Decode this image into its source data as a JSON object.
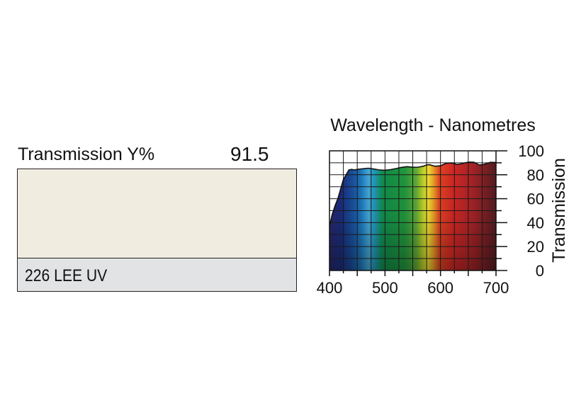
{
  "swatch": {
    "transmission_label": "Transmission Y%",
    "transmission_value": "91.5",
    "color": "#f1ece0",
    "name": "226 LEE UV"
  },
  "chart_data": {
    "type": "area",
    "title": "Wavelength - Nanometres",
    "xlabel": "",
    "ylabel": "Transmission",
    "xlim": [
      400,
      700
    ],
    "ylim": [
      0,
      100
    ],
    "xticks": [
      "400",
      "500",
      "600",
      "700"
    ],
    "yticks": [
      "0",
      "20",
      "40",
      "60",
      "80",
      "100"
    ],
    "grid": true,
    "x": [
      400,
      405,
      410,
      415,
      420,
      425,
      430,
      435,
      440,
      445,
      450,
      460,
      470,
      480,
      490,
      500,
      510,
      520,
      530,
      540,
      550,
      560,
      570,
      575,
      580,
      590,
      600,
      610,
      620,
      630,
      640,
      650,
      660,
      670,
      680,
      690,
      700
    ],
    "series": [
      {
        "values": [
          37,
          47,
          54,
          60,
          68,
          76,
          80,
          84,
          84.5,
          84,
          84.5,
          85,
          85.5,
          84.8,
          84,
          83.8,
          84.3,
          85.2,
          86.2,
          86.8,
          86.3,
          86.4,
          87.2,
          88.3,
          88.4,
          87.1,
          87.5,
          89.6,
          89.9,
          88.6,
          89.4,
          90.6,
          90.5,
          88.1,
          88.9,
          90.4,
          90.3
        ]
      }
    ]
  }
}
